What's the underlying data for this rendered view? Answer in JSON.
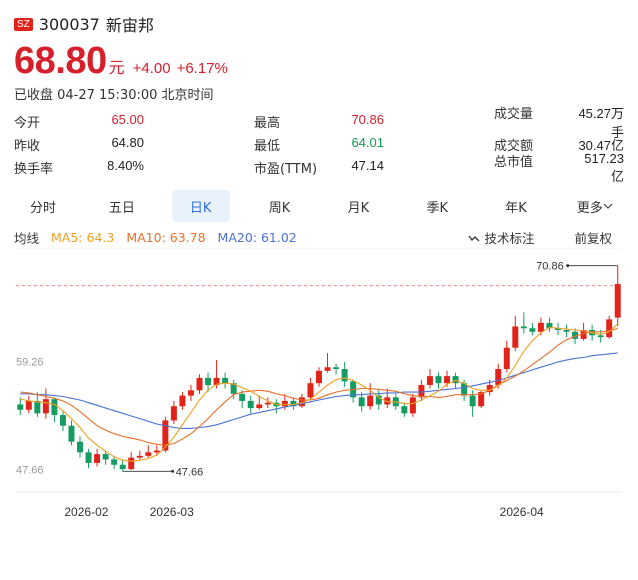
{
  "header": {
    "market_badge": "SZ",
    "code": "300037",
    "name": "新宙邦"
  },
  "quote": {
    "price": "68.80",
    "unit": "元",
    "change": "+4.00",
    "change_pct": "+6.17%",
    "status": "已收盘 04-27 15:30:00 北京时间"
  },
  "stats": [
    [
      {
        "label": "今开",
        "value": "65.00",
        "color": "red"
      },
      {
        "label": "最高",
        "value": "70.86",
        "color": "red"
      },
      {
        "label": "成交量",
        "value": "45.27万手",
        "color": "black"
      }
    ],
    [
      {
        "label": "昨收",
        "value": "64.80",
        "color": "black"
      },
      {
        "label": "最低",
        "value": "64.01",
        "color": "green"
      },
      {
        "label": "成交额",
        "value": "30.47亿",
        "color": "black"
      }
    ],
    [
      {
        "label": "换手率",
        "value": "8.40%",
        "color": "black"
      },
      {
        "label": "市盈(TTM)",
        "value": "47.14",
        "color": "black"
      },
      {
        "label": "总市值",
        "value": "517.23亿",
        "color": "black"
      }
    ]
  ],
  "tabs": [
    "分时",
    "五日",
    "日K",
    "周K",
    "月K",
    "季K",
    "年K",
    "更多"
  ],
  "active_tab": "日K",
  "ma_bar": {
    "label": "均线",
    "ma5": "MA5: 64.3",
    "ma10": "MA10: 63.78",
    "ma20": "MA20: 61.02",
    "indicator": "技术标注",
    "adjust": "前复权"
  },
  "colors": {
    "up": "#e2231a",
    "down": "#149c62",
    "ma5": "#f0a020",
    "ma10": "#e8702a",
    "ma20": "#4a72d8",
    "accent": "#2f6fd8"
  },
  "chart_data": {
    "type": "candlestick",
    "y_ticks": [
      "59.26",
      "47.66"
    ],
    "x_ticks": [
      "2026-02",
      "2026-03",
      "2026-04"
    ],
    "high_marker": "70.86",
    "low_marker": "47.66",
    "ylim": [
      47.66,
      70.86
    ],
    "candles": [
      [
        55.2,
        54.6,
        56.0,
        54.0
      ],
      [
        54.6,
        55.6,
        56.2,
        54.2
      ],
      [
        55.6,
        54.2,
        56.6,
        53.8
      ],
      [
        54.2,
        55.8,
        57.0,
        53.6
      ],
      [
        55.8,
        54.0,
        56.0,
        53.2
      ],
      [
        54.0,
        52.8,
        54.4,
        52.2
      ],
      [
        52.8,
        51.0,
        53.4,
        50.6
      ],
      [
        51.0,
        49.8,
        51.6,
        49.2
      ],
      [
        49.8,
        48.6,
        50.2,
        48.0
      ],
      [
        48.6,
        49.6,
        50.2,
        48.2
      ],
      [
        49.6,
        49.0,
        50.0,
        48.4
      ],
      [
        49.0,
        48.4,
        49.4,
        47.9
      ],
      [
        48.4,
        47.9,
        49.0,
        47.66
      ],
      [
        47.9,
        49.2,
        49.8,
        47.8
      ],
      [
        49.2,
        49.4,
        50.0,
        49.0
      ],
      [
        49.4,
        49.8,
        50.6,
        49.2
      ],
      [
        49.8,
        50.0,
        50.6,
        49.4
      ],
      [
        50.0,
        53.4,
        53.8,
        49.8
      ],
      [
        53.4,
        55.0,
        55.6,
        53.0
      ],
      [
        55.0,
        56.2,
        56.6,
        54.6
      ],
      [
        56.2,
        56.8,
        57.4,
        55.6
      ],
      [
        56.8,
        58.2,
        58.6,
        56.4
      ],
      [
        58.2,
        57.4,
        58.8,
        56.6
      ],
      [
        57.4,
        58.2,
        60.2,
        57.0
      ],
      [
        58.2,
        57.6,
        58.8,
        57.0
      ],
      [
        57.6,
        56.4,
        58.0,
        55.8
      ],
      [
        56.4,
        55.6,
        56.8,
        54.8
      ],
      [
        55.6,
        54.8,
        56.2,
        54.2
      ],
      [
        54.8,
        55.2,
        56.2,
        54.6
      ],
      [
        55.2,
        55.4,
        56.0,
        54.8
      ],
      [
        55.4,
        55.0,
        55.8,
        54.2
      ],
      [
        55.0,
        55.6,
        56.4,
        54.6
      ],
      [
        55.6,
        55.0,
        56.0,
        54.6
      ],
      [
        55.0,
        56.0,
        56.4,
        54.8
      ],
      [
        56.0,
        57.6,
        58.2,
        55.8
      ],
      [
        57.6,
        59.0,
        59.4,
        57.2
      ],
      [
        59.0,
        59.4,
        61.0,
        58.8
      ],
      [
        59.4,
        59.2,
        59.8,
        58.6
      ],
      [
        59.2,
        57.8,
        60.0,
        57.2
      ],
      [
        57.8,
        56.0,
        58.0,
        55.4
      ],
      [
        56.0,
        55.0,
        56.6,
        54.4
      ],
      [
        55.0,
        56.2,
        57.6,
        54.6
      ],
      [
        56.2,
        55.2,
        56.8,
        54.6
      ],
      [
        55.2,
        56.0,
        57.0,
        54.8
      ],
      [
        56.0,
        55.0,
        56.4,
        54.6
      ],
      [
        55.0,
        54.2,
        55.4,
        53.8
      ],
      [
        54.2,
        56.0,
        56.4,
        53.8
      ],
      [
        56.0,
        57.4,
        58.0,
        55.6
      ],
      [
        57.4,
        58.4,
        59.2,
        57.0
      ],
      [
        58.4,
        57.6,
        58.8,
        57.0
      ],
      [
        57.6,
        58.4,
        59.0,
        57.2
      ],
      [
        58.4,
        57.6,
        58.8,
        57.0
      ],
      [
        57.6,
        56.2,
        58.0,
        55.6
      ],
      [
        56.2,
        55.0,
        56.8,
        53.8
      ],
      [
        55.0,
        56.6,
        56.8,
        54.8
      ],
      [
        56.6,
        57.4,
        58.0,
        56.2
      ],
      [
        57.4,
        59.2,
        59.8,
        57.0
      ],
      [
        59.2,
        61.6,
        62.4,
        58.8
      ],
      [
        61.6,
        64.0,
        65.2,
        61.2
      ],
      [
        64.0,
        63.8,
        65.6,
        63.2
      ],
      [
        63.8,
        63.4,
        64.4,
        63.0
      ],
      [
        63.4,
        64.4,
        65.0,
        63.0
      ],
      [
        64.4,
        63.8,
        65.0,
        63.4
      ],
      [
        63.8,
        63.6,
        64.4,
        63.0
      ],
      [
        63.6,
        63.4,
        64.2,
        62.8
      ],
      [
        63.4,
        62.6,
        63.8,
        62.0
      ],
      [
        62.6,
        63.6,
        64.4,
        62.4
      ],
      [
        63.6,
        63.0,
        64.2,
        62.4
      ],
      [
        63.0,
        62.8,
        63.6,
        62.2
      ],
      [
        62.8,
        64.8,
        65.2,
        62.6
      ],
      [
        65.0,
        68.8,
        70.86,
        64.01
      ]
    ],
    "ma5": [
      55.8,
      55.6,
      55.5,
      55.4,
      55.2,
      54.5,
      53.6,
      52.6,
      51.4,
      50.6,
      49.9,
      49.3,
      48.9,
      48.8,
      48.9,
      49.1,
      49.5,
      50.4,
      51.5,
      52.9,
      54.3,
      55.7,
      56.8,
      57.5,
      57.6,
      57.5,
      57.1,
      56.7,
      56.1,
      55.6,
      55.2,
      55.2,
      55.2,
      55.4,
      55.8,
      56.6,
      57.4,
      58.0,
      58.2,
      57.9,
      57.4,
      56.8,
      56.0,
      55.5,
      55.5,
      55.3,
      55.3,
      55.7,
      56.2,
      56.7,
      57.5,
      57.9,
      57.6,
      57.0,
      56.8,
      56.8,
      57.3,
      58.2,
      59.6,
      61.2,
      62.4,
      63.3,
      63.9,
      63.8,
      63.7,
      63.6,
      63.5,
      63.3,
      63.1,
      63.4,
      64.3
    ],
    "ma10": [
      56.6,
      56.5,
      56.3,
      56.1,
      55.9,
      55.6,
      55.1,
      54.4,
      53.6,
      52.8,
      52.3,
      51.9,
      51.6,
      51.4,
      51.2,
      50.9,
      50.7,
      50.6,
      50.8,
      51.3,
      51.9,
      52.7,
      53.6,
      54.6,
      55.5,
      56.3,
      56.6,
      56.7,
      56.8,
      56.7,
      56.4,
      56.2,
      55.9,
      55.7,
      55.7,
      55.9,
      56.3,
      56.6,
      56.8,
      56.9,
      57.0,
      57.0,
      56.9,
      56.8,
      56.7,
      56.4,
      56.2,
      56.1,
      56.1,
      56.0,
      56.1,
      56.3,
      56.3,
      56.3,
      56.4,
      56.8,
      57.4,
      57.9,
      58.4,
      59.0,
      59.7,
      60.4,
      61.1,
      61.9,
      62.5,
      62.9,
      63.2,
      63.4,
      63.4,
      63.5,
      63.78
    ],
    "ma20": [
      56.4,
      56.4,
      56.3,
      56.3,
      56.2,
      56.1,
      55.9,
      55.7,
      55.4,
      55.1,
      54.8,
      54.5,
      54.2,
      53.9,
      53.6,
      53.3,
      53.0,
      52.8,
      52.6,
      52.5,
      52.5,
      52.6,
      52.7,
      52.9,
      53.2,
      53.5,
      53.8,
      54.1,
      54.3,
      54.5,
      54.7,
      54.9,
      55.1,
      55.3,
      55.5,
      55.7,
      55.9,
      56.1,
      56.2,
      56.3,
      56.3,
      56.4,
      56.4,
      56.5,
      56.5,
      56.6,
      56.6,
      56.6,
      56.7,
      56.8,
      56.9,
      57.0,
      57.1,
      57.3,
      57.5,
      57.7,
      57.9,
      58.2,
      58.5,
      58.8,
      59.1,
      59.4,
      59.7,
      60.0,
      60.2,
      60.4,
      60.5,
      60.7,
      60.8,
      60.9,
      61.02
    ]
  }
}
